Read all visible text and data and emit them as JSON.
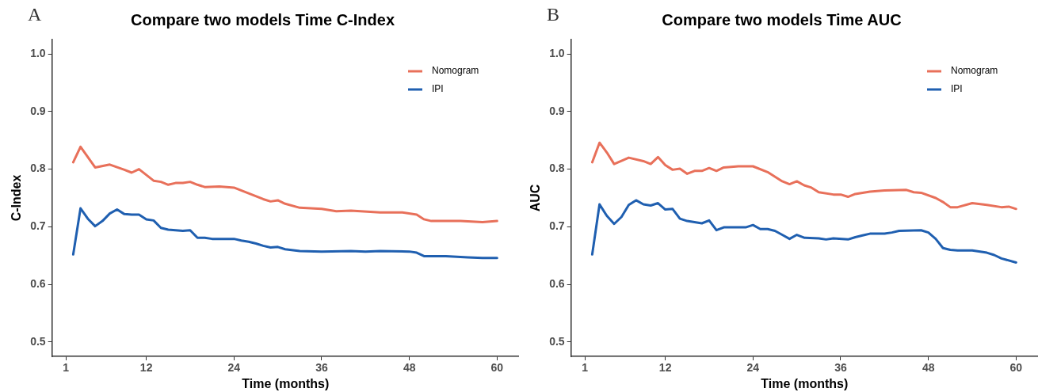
{
  "chart_data": [
    {
      "type": "line",
      "title": "Compare two models Time C-Index",
      "xlabel": "Time (months)",
      "ylabel": "C-Index",
      "annotations": [
        "A"
      ],
      "legend": "top right",
      "grid": false,
      "xlim": [
        -0.9,
        63
      ],
      "xticks": [
        1,
        12,
        24,
        36,
        48,
        60
      ],
      "ylim": [
        0.475,
        1.025
      ],
      "yticks": [
        0.5,
        0.6,
        0.7,
        0.8,
        0.9,
        {
          "value": 1,
          "label": "1.0"
        }
      ],
      "series": [
        {
          "name": "Nomogram",
          "color": "#e8705a",
          "x": [
            2,
            3,
            5,
            7,
            9,
            10,
            11,
            13,
            14,
            15,
            16,
            17,
            18,
            19,
            20,
            22,
            24,
            26,
            28,
            29,
            30,
            31,
            33,
            36,
            38,
            40,
            44,
            47,
            49,
            50,
            51,
            55,
            58,
            60
          ],
          "values": [
            0.812,
            0.839,
            0.803,
            0.808,
            0.799,
            0.794,
            0.8,
            0.78,
            0.778,
            0.773,
            0.776,
            0.776,
            0.778,
            0.773,
            0.769,
            0.77,
            0.768,
            0.758,
            0.748,
            0.744,
            0.746,
            0.74,
            0.733,
            0.731,
            0.727,
            0.728,
            0.725,
            0.725,
            0.721,
            0.713,
            0.71,
            0.71,
            0.708,
            0.71
          ]
        },
        {
          "name": "IPI",
          "color": "#1f5fb0",
          "x": [
            2,
            3,
            4,
            5,
            6,
            7,
            8,
            9,
            10,
            11,
            12,
            13,
            14,
            15,
            17,
            18,
            19,
            20,
            21,
            24,
            25,
            26,
            27,
            28,
            29,
            30,
            31,
            33,
            36,
            40,
            42,
            44,
            48,
            49,
            50,
            53,
            56,
            58,
            60
          ],
          "values": [
            0.652,
            0.732,
            0.714,
            0.701,
            0.71,
            0.723,
            0.73,
            0.722,
            0.721,
            0.721,
            0.713,
            0.711,
            0.698,
            0.695,
            0.693,
            0.694,
            0.681,
            0.681,
            0.679,
            0.679,
            0.676,
            0.674,
            0.671,
            0.667,
            0.664,
            0.665,
            0.661,
            0.658,
            0.657,
            0.658,
            0.657,
            0.658,
            0.657,
            0.655,
            0.649,
            0.649,
            0.647,
            0.646,
            0.646
          ]
        }
      ]
    },
    {
      "type": "line",
      "title": "Compare two models Time AUC",
      "xlabel": "Time (months)",
      "ylabel": "AUC",
      "annotations": [
        "B"
      ],
      "legend": "top right",
      "grid": false,
      "xlim": [
        -0.9,
        63
      ],
      "xticks": [
        1,
        12,
        24,
        36,
        48,
        60
      ],
      "ylim": [
        0.475,
        1.025
      ],
      "yticks": [
        0.5,
        0.6,
        0.7,
        0.8,
        0.9,
        {
          "value": 1,
          "label": "1.0"
        }
      ],
      "series": [
        {
          "name": "Nomogram",
          "color": "#e8705a",
          "x": [
            2,
            3,
            4,
            5,
            7,
            9,
            10,
            11,
            12,
            13,
            14,
            15,
            16,
            17,
            18,
            19,
            20,
            22,
            24,
            26,
            28,
            29,
            30,
            31,
            32,
            33,
            35,
            36,
            37,
            38,
            40,
            42,
            45,
            46,
            47,
            49,
            50,
            51,
            52,
            54,
            56,
            58,
            59,
            60
          ],
          "values": [
            0.812,
            0.846,
            0.829,
            0.809,
            0.82,
            0.814,
            0.809,
            0.821,
            0.807,
            0.799,
            0.801,
            0.792,
            0.797,
            0.797,
            0.802,
            0.797,
            0.803,
            0.805,
            0.805,
            0.795,
            0.779,
            0.774,
            0.779,
            0.772,
            0.768,
            0.76,
            0.756,
            0.756,
            0.752,
            0.757,
            0.761,
            0.763,
            0.764,
            0.76,
            0.759,
            0.75,
            0.743,
            0.734,
            0.734,
            0.741,
            0.738,
            0.734,
            0.735,
            0.731
          ]
        },
        {
          "name": "IPI",
          "color": "#1f5fb0",
          "x": [
            2,
            3,
            4,
            5,
            6,
            7,
            8,
            9,
            10,
            11,
            12,
            13,
            14,
            15,
            17,
            18,
            19,
            20,
            23,
            24,
            25,
            26,
            27,
            28,
            29,
            30,
            31,
            33,
            34,
            35,
            37,
            38,
            39,
            40,
            42,
            43,
            44,
            47,
            48,
            49,
            50,
            51,
            52,
            54,
            56,
            57,
            58,
            60
          ],
          "values": [
            0.652,
            0.739,
            0.719,
            0.705,
            0.717,
            0.738,
            0.746,
            0.739,
            0.737,
            0.741,
            0.73,
            0.731,
            0.714,
            0.71,
            0.706,
            0.711,
            0.694,
            0.699,
            0.699,
            0.703,
            0.696,
            0.696,
            0.693,
            0.686,
            0.679,
            0.686,
            0.681,
            0.68,
            0.678,
            0.68,
            0.678,
            0.682,
            0.685,
            0.688,
            0.688,
            0.69,
            0.693,
            0.694,
            0.69,
            0.679,
            0.663,
            0.66,
            0.659,
            0.659,
            0.655,
            0.651,
            0.645,
            0.638
          ]
        }
      ]
    }
  ]
}
